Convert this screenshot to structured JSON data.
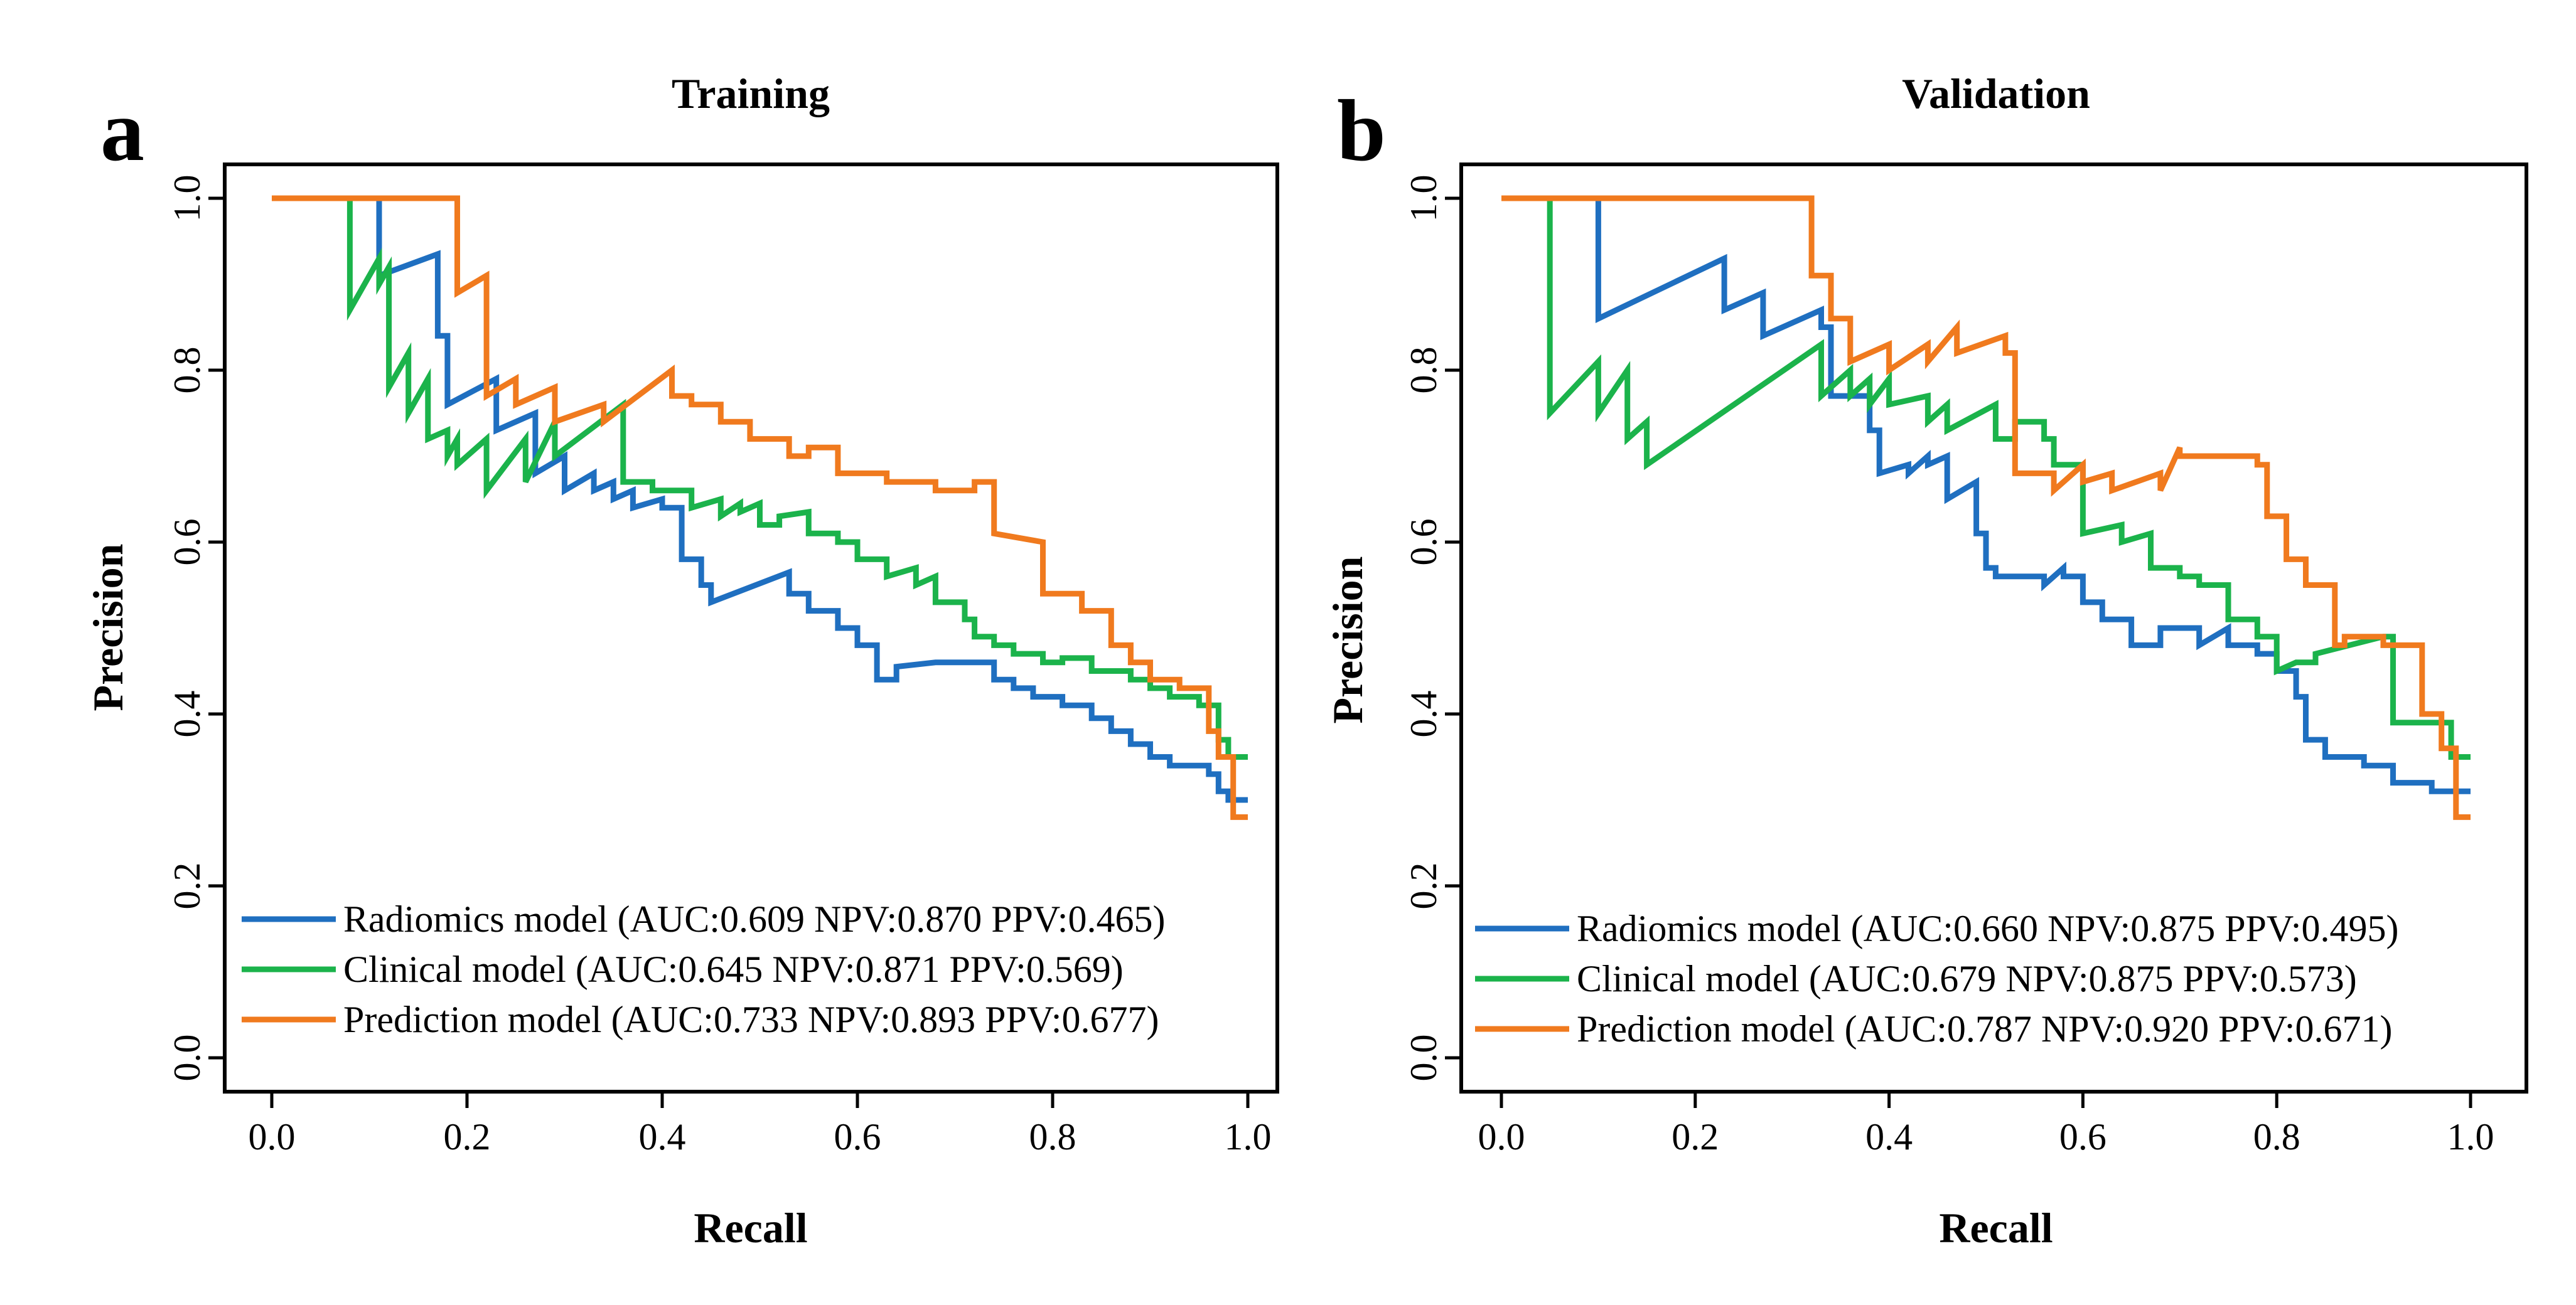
{
  "chart_data": [
    {
      "type": "line",
      "panel_letter": "a",
      "title": "Training",
      "xlabel": "Recall",
      "ylabel": "Precision",
      "xlim": [
        0,
        1
      ],
      "ylim": [
        0,
        1
      ],
      "xticks": [
        "0.0",
        "0.2",
        "0.4",
        "0.6",
        "0.8",
        "1.0"
      ],
      "yticks": [
        "0.0",
        "0.2",
        "0.4",
        "0.6",
        "0.8",
        "1.0"
      ],
      "legend_position": "bottom-left",
      "series": [
        {
          "name": "Radiomics model",
          "legend": "Radiomics model (AUC:0.609 NPV:0.870 PPV:0.465)",
          "color": "#1f6fc0",
          "x": [
            0,
            0.11,
            0.11,
            0.17,
            0.17,
            0.18,
            0.18,
            0.23,
            0.23,
            0.27,
            0.27,
            0.3,
            0.3,
            0.33,
            0.33,
            0.35,
            0.35,
            0.37,
            0.37,
            0.4,
            0.4,
            0.42,
            0.42,
            0.44,
            0.44,
            0.45,
            0.45,
            0.53,
            0.53,
            0.55,
            0.55,
            0.58,
            0.58,
            0.6,
            0.6,
            0.62,
            0.62,
            0.64,
            0.64,
            0.68,
            0.68,
            0.74,
            0.74,
            0.76,
            0.76,
            0.78,
            0.78,
            0.81,
            0.81,
            0.84,
            0.84,
            0.86,
            0.86,
            0.88,
            0.88,
            0.9,
            0.9,
            0.92,
            0.92,
            0.94,
            0.94,
            0.96,
            0.96,
            0.97,
            0.97,
            0.98,
            0.98,
            1.0
          ],
          "y": [
            1.0,
            1.0,
            0.91,
            0.935,
            0.84,
            0.84,
            0.76,
            0.79,
            0.73,
            0.75,
            0.68,
            0.7,
            0.66,
            0.68,
            0.66,
            0.67,
            0.65,
            0.66,
            0.64,
            0.65,
            0.64,
            0.64,
            0.58,
            0.58,
            0.55,
            0.55,
            0.53,
            0.565,
            0.54,
            0.54,
            0.52,
            0.52,
            0.5,
            0.5,
            0.48,
            0.48,
            0.44,
            0.44,
            0.455,
            0.46,
            0.46,
            0.46,
            0.44,
            0.44,
            0.43,
            0.43,
            0.42,
            0.42,
            0.41,
            0.41,
            0.395,
            0.395,
            0.38,
            0.38,
            0.365,
            0.365,
            0.35,
            0.35,
            0.34,
            0.34,
            0.34,
            0.34,
            0.33,
            0.33,
            0.31,
            0.31,
            0.3,
            0.3
          ]
        },
        {
          "name": "Clinical model",
          "legend": "Clinical model (AUC:0.645 NPV:0.871 PPV:0.569)",
          "color": "#1bb34b",
          "x": [
            0,
            0.08,
            0.08,
            0.11,
            0.11,
            0.12,
            0.12,
            0.14,
            0.14,
            0.16,
            0.16,
            0.18,
            0.18,
            0.19,
            0.19,
            0.22,
            0.22,
            0.26,
            0.26,
            0.29,
            0.29,
            0.36,
            0.36,
            0.39,
            0.39,
            0.43,
            0.43,
            0.46,
            0.46,
            0.48,
            0.48,
            0.5,
            0.5,
            0.52,
            0.52,
            0.55,
            0.55,
            0.58,
            0.58,
            0.6,
            0.6,
            0.63,
            0.63,
            0.66,
            0.66,
            0.68,
            0.68,
            0.71,
            0.71,
            0.72,
            0.72,
            0.74,
            0.74,
            0.76,
            0.76,
            0.79,
            0.79,
            0.81,
            0.81,
            0.84,
            0.84,
            0.88,
            0.88,
            0.9,
            0.9,
            0.92,
            0.92,
            0.95,
            0.95,
            0.97,
            0.97,
            0.98,
            0.98,
            1.0
          ],
          "y": [
            1.0,
            1.0,
            0.87,
            0.93,
            0.9,
            0.92,
            0.78,
            0.82,
            0.75,
            0.79,
            0.72,
            0.73,
            0.7,
            0.72,
            0.69,
            0.72,
            0.66,
            0.72,
            0.67,
            0.74,
            0.7,
            0.76,
            0.67,
            0.67,
            0.66,
            0.66,
            0.64,
            0.65,
            0.63,
            0.645,
            0.635,
            0.645,
            0.62,
            0.62,
            0.63,
            0.635,
            0.61,
            0.61,
            0.6,
            0.6,
            0.58,
            0.58,
            0.56,
            0.57,
            0.55,
            0.56,
            0.53,
            0.53,
            0.51,
            0.51,
            0.49,
            0.49,
            0.48,
            0.48,
            0.47,
            0.47,
            0.46,
            0.46,
            0.465,
            0.465,
            0.45,
            0.45,
            0.44,
            0.44,
            0.43,
            0.43,
            0.42,
            0.42,
            0.41,
            0.41,
            0.37,
            0.37,
            0.35,
            0.35
          ]
        },
        {
          "name": "Prediction model",
          "legend": "Prediction model (AUC:0.733 NPV:0.893 PPV:0.677)",
          "color": "#f07a1e",
          "x": [
            0,
            0.19,
            0.19,
            0.22,
            0.22,
            0.25,
            0.25,
            0.29,
            0.29,
            0.34,
            0.34,
            0.41,
            0.41,
            0.43,
            0.43,
            0.46,
            0.46,
            0.49,
            0.49,
            0.53,
            0.53,
            0.55,
            0.55,
            0.58,
            0.58,
            0.63,
            0.63,
            0.68,
            0.68,
            0.72,
            0.72,
            0.74,
            0.74,
            0.79,
            0.79,
            0.83,
            0.83,
            0.86,
            0.86,
            0.88,
            0.88,
            0.9,
            0.9,
            0.93,
            0.93,
            0.96,
            0.96,
            0.97,
            0.97,
            0.985,
            0.985,
            1.0
          ],
          "y": [
            1.0,
            1.0,
            0.89,
            0.91,
            0.77,
            0.79,
            0.76,
            0.78,
            0.74,
            0.76,
            0.74,
            0.8,
            0.77,
            0.77,
            0.76,
            0.76,
            0.74,
            0.74,
            0.72,
            0.72,
            0.7,
            0.7,
            0.71,
            0.71,
            0.68,
            0.68,
            0.67,
            0.67,
            0.66,
            0.66,
            0.67,
            0.67,
            0.61,
            0.6,
            0.54,
            0.54,
            0.52,
            0.52,
            0.48,
            0.48,
            0.46,
            0.46,
            0.44,
            0.44,
            0.43,
            0.43,
            0.38,
            0.38,
            0.35,
            0.35,
            0.28,
            0.28
          ]
        }
      ]
    },
    {
      "type": "line",
      "panel_letter": "b",
      "title": "Validation",
      "xlabel": "Recall",
      "ylabel": "Precision",
      "xlim": [
        0,
        1
      ],
      "ylim": [
        0,
        1
      ],
      "xticks": [
        "0.0",
        "0.2",
        "0.4",
        "0.6",
        "0.8",
        "1.0"
      ],
      "yticks": [
        "0.0",
        "0.2",
        "0.4",
        "0.6",
        "0.8",
        "1.0"
      ],
      "legend_position": "bottom-left",
      "series": [
        {
          "name": "Radiomics model",
          "legend": "Radiomics model (AUC:0.660 NPV:0.875 PPV:0.495)",
          "color": "#1f6fc0",
          "x": [
            0,
            0.1,
            0.1,
            0.23,
            0.23,
            0.27,
            0.27,
            0.33,
            0.33,
            0.34,
            0.34,
            0.38,
            0.38,
            0.39,
            0.39,
            0.42,
            0.42,
            0.44,
            0.44,
            0.46,
            0.46,
            0.49,
            0.49,
            0.5,
            0.5,
            0.51,
            0.51,
            0.56,
            0.56,
            0.58,
            0.58,
            0.6,
            0.6,
            0.62,
            0.62,
            0.65,
            0.65,
            0.68,
            0.68,
            0.72,
            0.72,
            0.75,
            0.75,
            0.78,
            0.78,
            0.8,
            0.8,
            0.82,
            0.82,
            0.83,
            0.83,
            0.85,
            0.85,
            0.89,
            0.89,
            0.92,
            0.92,
            0.96,
            0.96,
            1.0
          ],
          "y": [
            1.0,
            1.0,
            0.86,
            0.93,
            0.87,
            0.89,
            0.84,
            0.87,
            0.85,
            0.85,
            0.77,
            0.77,
            0.73,
            0.73,
            0.68,
            0.69,
            0.68,
            0.7,
            0.69,
            0.7,
            0.65,
            0.67,
            0.61,
            0.61,
            0.57,
            0.57,
            0.56,
            0.56,
            0.55,
            0.57,
            0.56,
            0.56,
            0.53,
            0.53,
            0.51,
            0.51,
            0.48,
            0.48,
            0.5,
            0.5,
            0.48,
            0.5,
            0.48,
            0.48,
            0.47,
            0.47,
            0.45,
            0.45,
            0.42,
            0.42,
            0.37,
            0.37,
            0.35,
            0.35,
            0.34,
            0.34,
            0.32,
            0.32,
            0.31,
            0.31
          ]
        },
        {
          "name": "Clinical model",
          "legend": "Clinical model (AUC:0.679 NPV:0.875 PPV:0.573)",
          "color": "#1bb34b",
          "x": [
            0,
            0.05,
            0.05,
            0.1,
            0.1,
            0.13,
            0.13,
            0.15,
            0.15,
            0.33,
            0.33,
            0.36,
            0.36,
            0.38,
            0.38,
            0.4,
            0.4,
            0.44,
            0.44,
            0.46,
            0.46,
            0.51,
            0.51,
            0.53,
            0.53,
            0.56,
            0.56,
            0.57,
            0.57,
            0.6,
            0.6,
            0.64,
            0.64,
            0.67,
            0.67,
            0.7,
            0.7,
            0.72,
            0.72,
            0.75,
            0.75,
            0.78,
            0.78,
            0.8,
            0.8,
            0.82,
            0.82,
            0.84,
            0.84,
            0.91,
            0.91,
            0.92,
            0.92,
            0.98,
            0.98,
            1.0
          ],
          "y": [
            1.0,
            1.0,
            0.75,
            0.81,
            0.75,
            0.8,
            0.72,
            0.74,
            0.69,
            0.83,
            0.77,
            0.8,
            0.77,
            0.79,
            0.76,
            0.79,
            0.76,
            0.77,
            0.74,
            0.76,
            0.73,
            0.76,
            0.72,
            0.72,
            0.74,
            0.74,
            0.72,
            0.72,
            0.69,
            0.69,
            0.61,
            0.62,
            0.6,
            0.61,
            0.57,
            0.57,
            0.56,
            0.56,
            0.55,
            0.55,
            0.51,
            0.51,
            0.49,
            0.49,
            0.45,
            0.46,
            0.46,
            0.46,
            0.47,
            0.49,
            0.49,
            0.49,
            0.39,
            0.39,
            0.35,
            0.35
          ]
        },
        {
          "name": "Prediction model",
          "legend": "Prediction model (AUC:0.787 NPV:0.920 PPV:0.671)",
          "color": "#f07a1e",
          "x": [
            0,
            0.32,
            0.32,
            0.34,
            0.34,
            0.36,
            0.36,
            0.4,
            0.4,
            0.44,
            0.44,
            0.47,
            0.47,
            0.52,
            0.52,
            0.53,
            0.53,
            0.57,
            0.57,
            0.6,
            0.6,
            0.63,
            0.63,
            0.68,
            0.68,
            0.7,
            0.7,
            0.78,
            0.78,
            0.79,
            0.79,
            0.81,
            0.81,
            0.83,
            0.83,
            0.86,
            0.86,
            0.87,
            0.87,
            0.91,
            0.91,
            0.95,
            0.95,
            0.97,
            0.97,
            0.985,
            0.985,
            1.0
          ],
          "y": [
            1.0,
            1.0,
            0.91,
            0.91,
            0.86,
            0.86,
            0.81,
            0.83,
            0.8,
            0.83,
            0.81,
            0.85,
            0.82,
            0.84,
            0.82,
            0.82,
            0.68,
            0.68,
            0.66,
            0.69,
            0.67,
            0.68,
            0.66,
            0.68,
            0.66,
            0.71,
            0.7,
            0.7,
            0.69,
            0.69,
            0.63,
            0.63,
            0.58,
            0.58,
            0.55,
            0.55,
            0.48,
            0.48,
            0.49,
            0.49,
            0.48,
            0.48,
            0.4,
            0.4,
            0.36,
            0.36,
            0.28,
            0.28
          ]
        }
      ]
    }
  ]
}
